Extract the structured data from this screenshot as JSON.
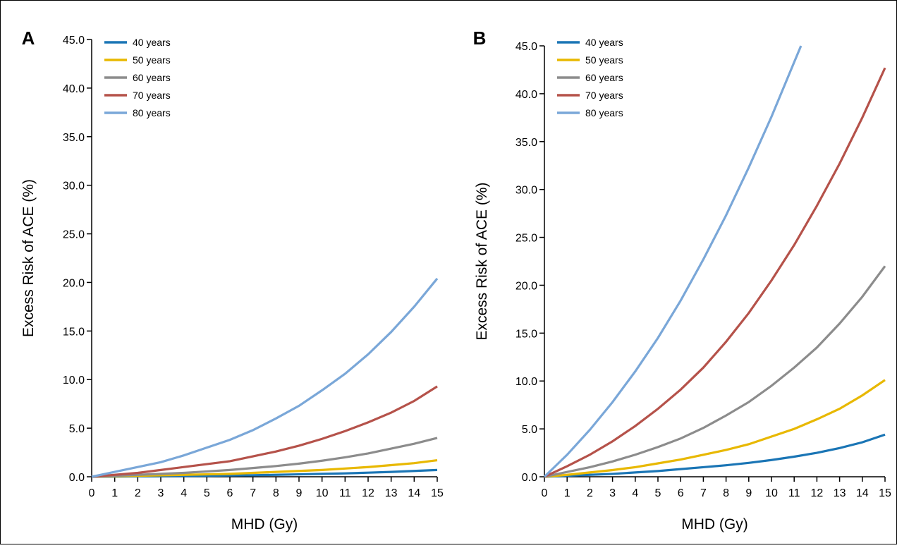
{
  "chart_data": [
    {
      "type": "line",
      "panel": "A",
      "xlabel": "MHD (Gy)",
      "ylabel": "Excess Risk of ACE (%)",
      "x": [
        0,
        1,
        2,
        3,
        4,
        5,
        6,
        7,
        8,
        9,
        10,
        11,
        12,
        13,
        14,
        15
      ],
      "xlim": [
        0,
        15
      ],
      "xticks": [
        0,
        1,
        2,
        3,
        4,
        5,
        6,
        7,
        8,
        9,
        10,
        11,
        12,
        13,
        14,
        15
      ],
      "ylim": [
        0,
        45
      ],
      "yticks": [
        {
          "value": 0,
          "label": "0.0"
        },
        {
          "value": 5,
          "label": "5.0"
        },
        {
          "value": 10,
          "label": "10.0"
        },
        {
          "value": 15,
          "label": "15.0"
        },
        {
          "value": 20,
          "label": "20.0"
        },
        {
          "value": 25,
          "label": "25.0"
        },
        {
          "value": 30,
          "label": "30.0"
        },
        {
          "value": 35,
          "label": "35.0"
        },
        {
          "value": 40,
          "label": "40.0"
        },
        {
          "value": 45,
          "label": "45.0"
        }
      ],
      "series": [
        {
          "name": "40 years",
          "color": "#1a75b5",
          "values": [
            0,
            0.02,
            0.04,
            0.06,
            0.08,
            0.1,
            0.13,
            0.16,
            0.2,
            0.25,
            0.3,
            0.35,
            0.42,
            0.5,
            0.6,
            0.7
          ]
        },
        {
          "name": "50 years",
          "color": "#e8b800",
          "values": [
            0,
            0.05,
            0.1,
            0.15,
            0.2,
            0.25,
            0.3,
            0.4,
            0.5,
            0.6,
            0.7,
            0.85,
            1.0,
            1.2,
            1.4,
            1.7
          ]
        },
        {
          "name": "60 years",
          "color": "#8c8c8c",
          "values": [
            0,
            0.1,
            0.2,
            0.3,
            0.4,
            0.55,
            0.7,
            0.9,
            1.1,
            1.35,
            1.65,
            2.0,
            2.4,
            2.9,
            3.4,
            4.0
          ]
        },
        {
          "name": "70 years",
          "color": "#b5524a",
          "values": [
            0,
            0.2,
            0.4,
            0.7,
            1.0,
            1.3,
            1.6,
            2.1,
            2.6,
            3.2,
            3.9,
            4.7,
            5.6,
            6.6,
            7.8,
            9.3
          ]
        },
        {
          "name": "80 years",
          "color": "#7aa7d8",
          "values": [
            0,
            0.5,
            1.0,
            1.5,
            2.2,
            3.0,
            3.8,
            4.8,
            6.0,
            7.3,
            8.9,
            10.6,
            12.6,
            14.9,
            17.5,
            20.4
          ]
        }
      ]
    },
    {
      "type": "line",
      "panel": "B",
      "xlabel": "MHD (Gy)",
      "ylabel": "Excess Risk of ACE (%)",
      "x": [
        0,
        1,
        2,
        3,
        4,
        5,
        6,
        7,
        8,
        9,
        10,
        11,
        12,
        13,
        14,
        15
      ],
      "xlim": [
        0,
        15
      ],
      "xticks": [
        0,
        1,
        2,
        3,
        4,
        5,
        6,
        7,
        8,
        9,
        10,
        11,
        12,
        13,
        14,
        15
      ],
      "ylim": [
        0,
        45
      ],
      "yticks": [
        {
          "value": 0,
          "label": "0.0"
        },
        {
          "value": 5,
          "label": "5.0"
        },
        {
          "value": 10,
          "label": "10.0"
        },
        {
          "value": 15,
          "label": "15.0"
        },
        {
          "value": 20,
          "label": "20.0"
        },
        {
          "value": 25,
          "label": "25.0"
        },
        {
          "value": 30,
          "label": "30.0"
        },
        {
          "value": 35,
          "label": "35.0"
        },
        {
          "value": 40,
          "label": "40.0"
        },
        {
          "value": 45,
          "label": "45.0"
        }
      ],
      "series": [
        {
          "name": "40 years",
          "color": "#1a75b5",
          "values": [
            0,
            0.1,
            0.2,
            0.3,
            0.45,
            0.6,
            0.8,
            1.0,
            1.2,
            1.45,
            1.75,
            2.1,
            2.5,
            3.0,
            3.6,
            4.4
          ]
        },
        {
          "name": "50 years",
          "color": "#e8b800",
          "values": [
            0,
            0.2,
            0.45,
            0.7,
            1.0,
            1.4,
            1.8,
            2.3,
            2.8,
            3.4,
            4.2,
            5.0,
            6.0,
            7.1,
            8.5,
            10.1
          ]
        },
        {
          "name": "60 years",
          "color": "#8c8c8c",
          "values": [
            0,
            0.5,
            1.0,
            1.6,
            2.3,
            3.1,
            4.0,
            5.1,
            6.4,
            7.8,
            9.5,
            11.4,
            13.5,
            16.0,
            18.8,
            22.0
          ]
        },
        {
          "name": "70 years",
          "color": "#b5524a",
          "values": [
            0,
            1.1,
            2.3,
            3.7,
            5.3,
            7.1,
            9.1,
            11.4,
            14.1,
            17.1,
            20.5,
            24.2,
            28.3,
            32.7,
            37.5,
            42.7
          ]
        },
        {
          "name": "80 years",
          "color": "#7aa7d8",
          "x": [
            0,
            1,
            2,
            3,
            4,
            5,
            6,
            7,
            8,
            9,
            10,
            11,
            11.3
          ],
          "values": [
            0,
            2.3,
            4.9,
            7.8,
            11.0,
            14.5,
            18.4,
            22.7,
            27.3,
            32.3,
            37.6,
            43.3,
            45
          ]
        }
      ]
    }
  ]
}
